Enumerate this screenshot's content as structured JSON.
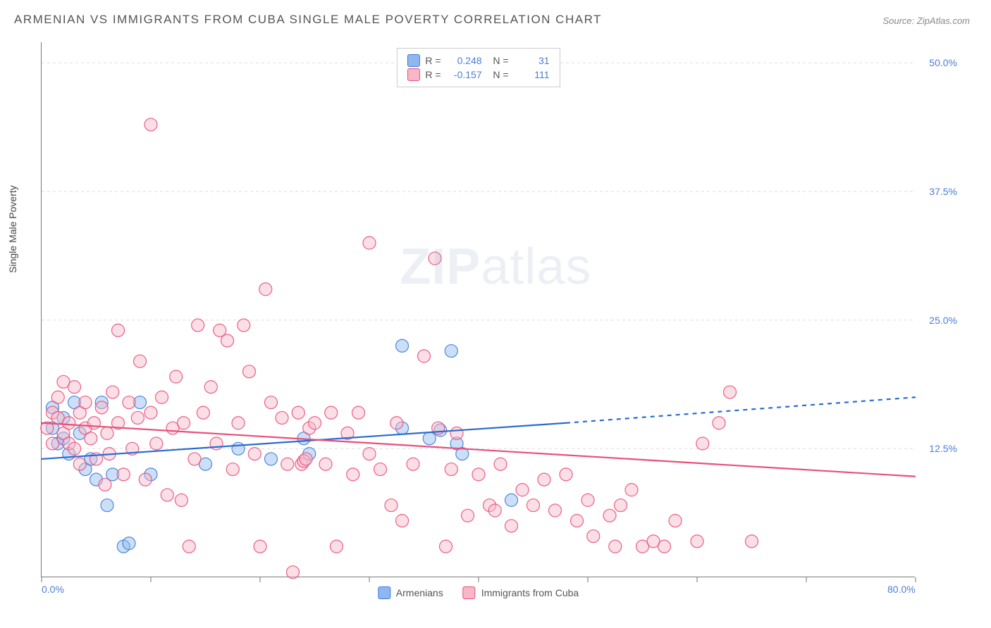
{
  "title": "ARMENIAN VS IMMIGRANTS FROM CUBA SINGLE MALE POVERTY CORRELATION CHART",
  "source": "Source: ZipAtlas.com",
  "watermark": "ZIPatlas",
  "chart": {
    "type": "scatter",
    "ylabel": "Single Male Poverty",
    "xlim": [
      0,
      80
    ],
    "ylim": [
      0,
      52
    ],
    "xtick_positions": [
      0,
      10,
      20,
      30,
      40,
      50,
      60,
      70,
      80
    ],
    "xtick_labels": {
      "0": "0.0%",
      "80": "80.0%"
    },
    "ytick_positions": [
      12.5,
      25.0,
      37.5,
      50.0
    ],
    "ytick_labels": [
      "12.5%",
      "25.0%",
      "37.5%",
      "50.0%"
    ],
    "grid_color": "#dddddd",
    "grid_dash": "4,4",
    "axis_color": "#777777",
    "background_color": "#ffffff",
    "marker_radius": 9,
    "marker_opacity": 0.45,
    "marker_stroke_opacity": 0.9,
    "series": [
      {
        "name": "Armenians",
        "color_fill": "#8fb7ef",
        "color_stroke": "#3d7bd9",
        "R": "0.248",
        "N": "31",
        "regression": {
          "x1": 0,
          "y1": 11.5,
          "x2": 48,
          "y2": 15.0,
          "dash_x2": 80,
          "dash_y2": 17.5,
          "width": 2.2,
          "line_color": "#2a6bd0"
        },
        "points": [
          [
            1,
            16.5
          ],
          [
            1,
            14.5
          ],
          [
            1.5,
            13
          ],
          [
            2,
            15.5
          ],
          [
            2,
            13.5
          ],
          [
            2.5,
            12
          ],
          [
            3,
            17
          ],
          [
            3.5,
            14
          ],
          [
            4,
            10.5
          ],
          [
            4.5,
            11.5
          ],
          [
            5,
            9.5
          ],
          [
            5.5,
            17
          ],
          [
            6,
            7
          ],
          [
            6.5,
            10
          ],
          [
            7.5,
            3
          ],
          [
            8,
            3.3
          ],
          [
            9,
            17
          ],
          [
            10,
            10
          ],
          [
            15,
            11
          ],
          [
            18,
            12.5
          ],
          [
            21,
            11.5
          ],
          [
            24,
            13.5
          ],
          [
            24.5,
            12
          ],
          [
            33,
            14.5
          ],
          [
            33,
            22.5
          ],
          [
            35.5,
            13.5
          ],
          [
            36.5,
            14.3
          ],
          [
            37.5,
            22
          ],
          [
            38,
            13
          ],
          [
            38.5,
            12
          ],
          [
            43,
            7.5
          ]
        ]
      },
      {
        "name": "Immigrants from Cuba",
        "color_fill": "#f7b7c8",
        "color_stroke": "#e94f7a",
        "R": "-0.157",
        "N": "111",
        "regression": {
          "x1": 0,
          "y1": 15.0,
          "x2": 80,
          "y2": 9.8,
          "width": 2.2,
          "line_color": "#e94f7a"
        },
        "points": [
          [
            0.5,
            14.5
          ],
          [
            1,
            16
          ],
          [
            1,
            13
          ],
          [
            1.5,
            15.5
          ],
          [
            1.5,
            17.5
          ],
          [
            2,
            14
          ],
          [
            2,
            19
          ],
          [
            2.5,
            13
          ],
          [
            2.5,
            15
          ],
          [
            3,
            18.5
          ],
          [
            3,
            12.5
          ],
          [
            3.5,
            16
          ],
          [
            3.5,
            11
          ],
          [
            4,
            14.5
          ],
          [
            4,
            17
          ],
          [
            4.5,
            13.5
          ],
          [
            4.8,
            15
          ],
          [
            5,
            11.5
          ],
          [
            5.5,
            16.5
          ],
          [
            5.8,
            9
          ],
          [
            6,
            14
          ],
          [
            6.2,
            12
          ],
          [
            6.5,
            18
          ],
          [
            7,
            15
          ],
          [
            7,
            24
          ],
          [
            7.5,
            10
          ],
          [
            8,
            17
          ],
          [
            8.3,
            12.5
          ],
          [
            8.8,
            15.5
          ],
          [
            9,
            21
          ],
          [
            9.5,
            9.5
          ],
          [
            10,
            16
          ],
          [
            10,
            44
          ],
          [
            10.5,
            13
          ],
          [
            11,
            17.5
          ],
          [
            11.5,
            8
          ],
          [
            12,
            14.5
          ],
          [
            12.3,
            19.5
          ],
          [
            12.8,
            7.5
          ],
          [
            13,
            15
          ],
          [
            13.5,
            3
          ],
          [
            14,
            11.5
          ],
          [
            14.3,
            24.5
          ],
          [
            14.8,
            16
          ],
          [
            15.5,
            18.5
          ],
          [
            16,
            13
          ],
          [
            16.3,
            24
          ],
          [
            17,
            23
          ],
          [
            17.5,
            10.5
          ],
          [
            18,
            15
          ],
          [
            18.5,
            24.5
          ],
          [
            19,
            20
          ],
          [
            19.5,
            12
          ],
          [
            20,
            3
          ],
          [
            20.5,
            28
          ],
          [
            21,
            17
          ],
          [
            22,
            15.5
          ],
          [
            22.5,
            11
          ],
          [
            23,
            0.5
          ],
          [
            23.5,
            16
          ],
          [
            23.8,
            11
          ],
          [
            24,
            11.3
          ],
          [
            24.2,
            11.5
          ],
          [
            24.5,
            14.5
          ],
          [
            25,
            15
          ],
          [
            26,
            11
          ],
          [
            26.5,
            16
          ],
          [
            27,
            3
          ],
          [
            28,
            14
          ],
          [
            28.5,
            10
          ],
          [
            29,
            16
          ],
          [
            30,
            12
          ],
          [
            30,
            32.5
          ],
          [
            31,
            10.5
          ],
          [
            32,
            7
          ],
          [
            32.5,
            15
          ],
          [
            33,
            5.5
          ],
          [
            34,
            11
          ],
          [
            35,
            21.5
          ],
          [
            36,
            31
          ],
          [
            36.3,
            14.5
          ],
          [
            37,
            3
          ],
          [
            37.5,
            10.5
          ],
          [
            38,
            14
          ],
          [
            39,
            6
          ],
          [
            40,
            10
          ],
          [
            41,
            7
          ],
          [
            41.5,
            6.5
          ],
          [
            42,
            11
          ],
          [
            43,
            5
          ],
          [
            44,
            8.5
          ],
          [
            45,
            7
          ],
          [
            46,
            9.5
          ],
          [
            47,
            6.5
          ],
          [
            48,
            10
          ],
          [
            49,
            5.5
          ],
          [
            50,
            7.5
          ],
          [
            50.5,
            4
          ],
          [
            52,
            6
          ],
          [
            52.5,
            3
          ],
          [
            53,
            7
          ],
          [
            54,
            8.5
          ],
          [
            55,
            3
          ],
          [
            56,
            3.5
          ],
          [
            57,
            3
          ],
          [
            58,
            5.5
          ],
          [
            60,
            3.5
          ],
          [
            60.5,
            13
          ],
          [
            62,
            15
          ],
          [
            63,
            18
          ],
          [
            65,
            3.5
          ]
        ]
      }
    ],
    "legend": {
      "items": [
        "Armenians",
        "Immigrants from Cuba"
      ]
    }
  }
}
